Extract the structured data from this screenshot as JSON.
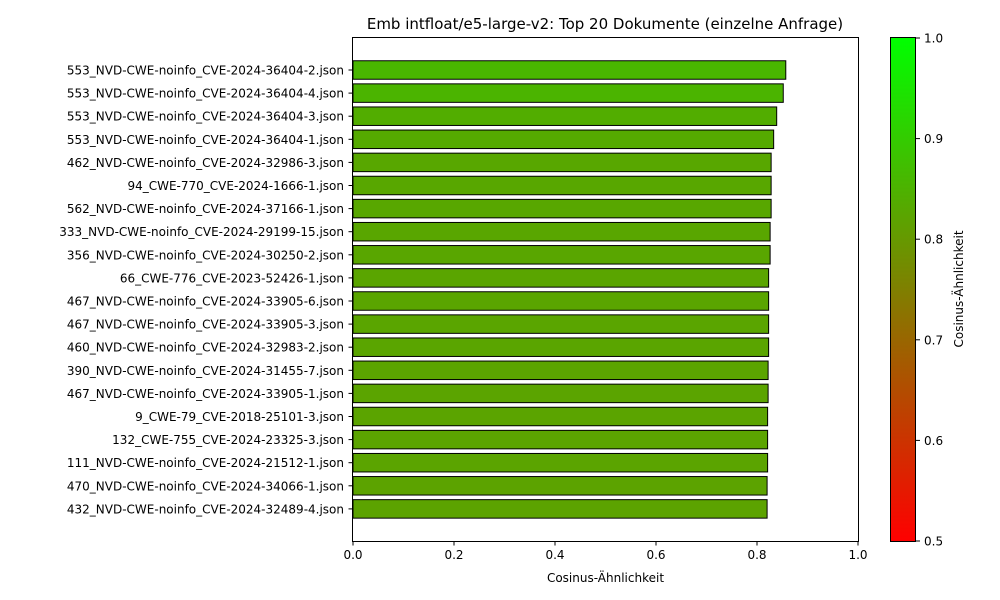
{
  "chart_data": {
    "type": "bar",
    "orientation": "horizontal",
    "title": "Emb intfloat/e5-large-v2: Top 20 Dokumente (einzelne Anfrage)",
    "xlabel": "Cosinus-Ähnlichkeit",
    "ylabel": "",
    "xlim": [
      0.0,
      1.0
    ],
    "x_ticks": [
      "0.0",
      "0.2",
      "0.4",
      "0.6",
      "0.8",
      "1.0"
    ],
    "categories": [
      "553_NVD-CWE-noinfo_CVE-2024-36404-2.json",
      "553_NVD-CWE-noinfo_CVE-2024-36404-4.json",
      "553_NVD-CWE-noinfo_CVE-2024-36404-3.json",
      "553_NVD-CWE-noinfo_CVE-2024-36404-1.json",
      "462_NVD-CWE-noinfo_CVE-2024-32986-3.json",
      "94_CWE-770_CVE-2024-1666-1.json",
      "562_NVD-CWE-noinfo_CVE-2024-37166-1.json",
      "333_NVD-CWE-noinfo_CVE-2024-29199-15.json",
      "356_NVD-CWE-noinfo_CVE-2024-30250-2.json",
      "66_CWE-776_CVE-2023-52426-1.json",
      "467_NVD-CWE-noinfo_CVE-2024-33905-6.json",
      "467_NVD-CWE-noinfo_CVE-2024-33905-3.json",
      "460_NVD-CWE-noinfo_CVE-2024-32983-2.json",
      "390_NVD-CWE-noinfo_CVE-2024-31455-7.json",
      "467_NVD-CWE-noinfo_CVE-2024-33905-1.json",
      "9_CWE-79_CVE-2018-25101-3.json",
      "132_CWE-755_CVE-2024-23325-3.json",
      "111_NVD-CWE-noinfo_CVE-2024-21512-1.json",
      "470_NVD-CWE-noinfo_CVE-2024-34066-1.json",
      "432_NVD-CWE-noinfo_CVE-2024-32489-4.json"
    ],
    "values": [
      0.857,
      0.852,
      0.839,
      0.833,
      0.828,
      0.828,
      0.828,
      0.826,
      0.826,
      0.823,
      0.823,
      0.823,
      0.823,
      0.822,
      0.822,
      0.821,
      0.821,
      0.821,
      0.82,
      0.82
    ],
    "bar_edge_color": "#000000",
    "colormap": {
      "label": "Cosinus-Ähnlichkeit",
      "range": [
        0.5,
        1.0
      ],
      "ticks": [
        "0.5",
        "0.6",
        "0.7",
        "0.8",
        "0.9",
        "1.0"
      ],
      "low_color": "#ff0000",
      "high_color": "#00ff00"
    },
    "grid": false,
    "legend": "none"
  }
}
